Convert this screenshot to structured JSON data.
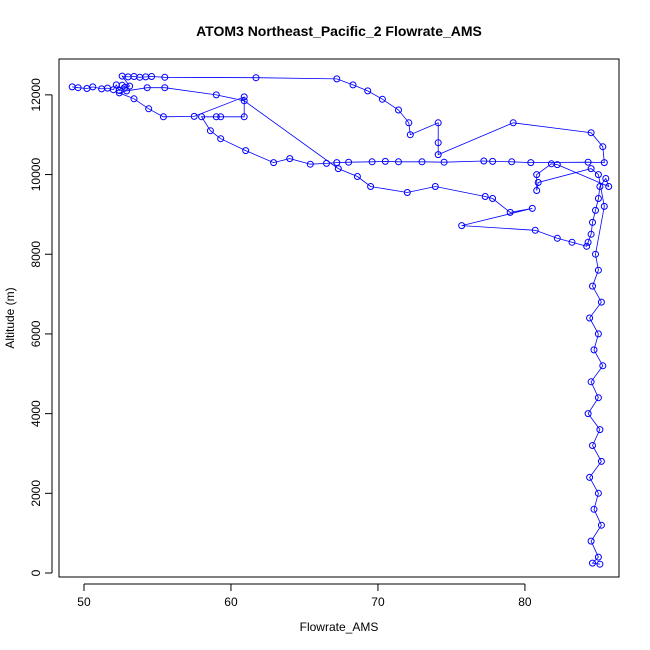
{
  "chart_data": {
    "type": "scatter",
    "title": "ATOM3 Northeast_Pacific_2 Flowrate_AMS",
    "xlabel": "Flowrate_AMS",
    "ylabel": "Altitude (m)",
    "xlim": [
      48.3,
      86.4
    ],
    "ylim": [
      -100,
      12900
    ],
    "xticks": [
      50,
      60,
      70,
      80
    ],
    "yticks": [
      0,
      2000,
      4000,
      6000,
      8000,
      10000,
      12000
    ],
    "grid": false,
    "legend": "none",
    "colors": {
      "series": "#0000ff",
      "axis": "#000000"
    },
    "markers": "open-circle",
    "series": [
      {
        "points": [
          [
            49.2,
            12200
          ],
          [
            49.6,
            12180
          ],
          [
            50.2,
            12160
          ],
          [
            50.6,
            12200
          ],
          [
            51.2,
            12150
          ],
          [
            51.6,
            12170
          ],
          [
            52.0,
            12130
          ],
          [
            52.2,
            12250
          ],
          [
            52.4,
            12110
          ],
          [
            52.6,
            12240
          ],
          [
            52.8,
            12190
          ],
          [
            53.1,
            12220
          ],
          [
            52.6,
            12470
          ],
          [
            53.0,
            12450
          ],
          [
            53.4,
            12460
          ],
          [
            53.8,
            12440
          ],
          [
            54.2,
            12450
          ],
          [
            54.6,
            12460
          ],
          [
            55.5,
            12440
          ],
          [
            61.7,
            12430
          ],
          [
            67.2,
            12400
          ],
          [
            68.3,
            12250
          ],
          [
            69.3,
            12100
          ],
          [
            70.3,
            11890
          ],
          [
            71.4,
            11620
          ],
          [
            72.1,
            11300
          ],
          [
            72.2,
            11000
          ],
          [
            74.1,
            11300
          ],
          [
            74.1,
            10800
          ],
          [
            74.1,
            10500
          ],
          [
            79.2,
            11300
          ],
          [
            84.5,
            11050
          ],
          [
            85.3,
            10700
          ],
          [
            85.4,
            10300
          ],
          [
            84.3,
            10310
          ],
          [
            80.4,
            10300
          ],
          [
            79.1,
            10320
          ],
          [
            77.8,
            10330
          ],
          [
            77.2,
            10340
          ],
          [
            74.5,
            10310
          ],
          [
            73.0,
            10320
          ],
          [
            71.4,
            10320
          ],
          [
            70.5,
            10330
          ],
          [
            69.6,
            10320
          ],
          [
            68.0,
            10310
          ],
          [
            67.2,
            10300
          ],
          [
            66.5,
            10280
          ],
          [
            65.4,
            10260
          ],
          [
            64.0,
            10400
          ],
          [
            62.9,
            10300
          ],
          [
            61.0,
            10600
          ],
          [
            59.3,
            10900
          ],
          [
            58.6,
            11100
          ],
          [
            58.0,
            11450
          ],
          [
            59.0,
            11450
          ],
          [
            59.3,
            11450
          ],
          [
            60.9,
            11450
          ],
          [
            60.9,
            11950
          ],
          [
            57.5,
            11460
          ],
          [
            55.4,
            11450
          ],
          [
            54.4,
            11650
          ],
          [
            53.4,
            11900
          ],
          [
            52.4,
            12050
          ],
          [
            52.9,
            12100
          ],
          [
            54.3,
            12180
          ],
          [
            55.5,
            12180
          ],
          [
            59.0,
            12000
          ],
          [
            60.9,
            11850
          ],
          [
            67.3,
            10150
          ],
          [
            68.6,
            9950
          ],
          [
            69.5,
            9700
          ],
          [
            72.0,
            9550
          ],
          [
            73.9,
            9700
          ],
          [
            77.3,
            9450
          ],
          [
            77.8,
            9400
          ],
          [
            79.0,
            9050
          ],
          [
            80.5,
            9150
          ],
          [
            75.7,
            8720
          ],
          [
            80.7,
            8600
          ],
          [
            82.2,
            8400
          ],
          [
            83.2,
            8300
          ],
          [
            84.2,
            8200
          ],
          [
            84.3,
            8300
          ],
          [
            84.5,
            8500
          ],
          [
            84.6,
            8800
          ],
          [
            84.8,
            9100
          ],
          [
            85.0,
            9400
          ],
          [
            85.1,
            9700
          ],
          [
            85.5,
            9900
          ],
          [
            85.7,
            9700
          ],
          [
            82.2,
            10250
          ],
          [
            81.8,
            10270
          ],
          [
            80.8,
            10000
          ],
          [
            80.8,
            9600
          ],
          [
            80.9,
            9800
          ],
          [
            84.5,
            10150
          ],
          [
            85.0,
            10000
          ],
          [
            85.4,
            9200
          ],
          [
            84.8,
            8000
          ],
          [
            85.0,
            7600
          ],
          [
            84.6,
            7200
          ],
          [
            85.2,
            6800
          ],
          [
            84.4,
            6400
          ],
          [
            85.0,
            6000
          ],
          [
            84.7,
            5600
          ],
          [
            85.3,
            5200
          ],
          [
            84.5,
            4800
          ],
          [
            85.0,
            4400
          ],
          [
            84.3,
            4000
          ],
          [
            85.1,
            3600
          ],
          [
            84.6,
            3200
          ],
          [
            85.2,
            2800
          ],
          [
            84.4,
            2400
          ],
          [
            85.0,
            2000
          ],
          [
            84.7,
            1600
          ],
          [
            85.2,
            1200
          ],
          [
            84.5,
            800
          ],
          [
            85.0,
            400
          ],
          [
            84.6,
            250
          ],
          [
            85.1,
            220
          ]
        ]
      }
    ]
  }
}
